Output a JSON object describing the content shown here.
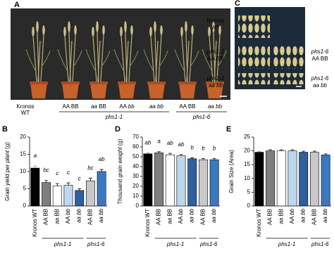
{
  "panel_a": {
    "letter": "A",
    "labels": [
      [
        "Kronos",
        "WT"
      ],
      [
        "AA BB"
      ],
      [
        "aa BB"
      ],
      [
        "AA bb"
      ],
      [
        "aa bb"
      ],
      [
        "AA BB"
      ],
      [
        "aa bb"
      ]
    ],
    "groups": [
      "phs1-1",
      "phs1-6"
    ]
  },
  "panel_c": {
    "letter": "C",
    "left_labels": [
      [
        "Kronos",
        "WT"
      ],
      [
        "phs1-1",
        "AA BB"
      ],
      [
        "phs1-1",
        "aa bb"
      ]
    ],
    "right_labels": [
      [
        "phs1-6",
        "AA BB"
      ],
      [
        "phs1-6",
        "aa bb"
      ]
    ]
  },
  "chart_data": [
    {
      "type": "bar",
      "letter": "B",
      "y_label": "Grain yield per plant (g)",
      "categories": [
        "Kronos WT",
        "AA BB",
        "aa BB",
        "AA bb",
        "aa bb",
        "AA BB",
        "aa bb"
      ],
      "groups": [
        "phs1-1",
        "phs1-6"
      ],
      "values": [
        11,
        6.8,
        5.8,
        6,
        4.5,
        7.3,
        10
      ],
      "errors": [
        0.6,
        0.6,
        0.7,
        0.7,
        0.5,
        0.8,
        0.6
      ],
      "annotations": [
        "a",
        "bc",
        "c",
        "c",
        "c",
        "bc",
        "ab"
      ],
      "colors": [
        "#000000",
        "#7f7f7f",
        "#ffffff",
        "#bdd7ee",
        "#2e5f9e",
        "#c8c8c8",
        "#3a78c0"
      ],
      "ylim": [
        0,
        20
      ],
      "yticks": [
        0,
        5,
        10,
        15,
        20
      ]
    },
    {
      "type": "bar",
      "letter": "D",
      "y_label": "Thousand grain weight (g)",
      "categories": [
        "Kronos WT",
        "AA BB",
        "aa BB",
        "AA bb",
        "aa bb",
        "AA BB",
        "aa bb"
      ],
      "groups": [
        "phs1-1",
        "phs1-6"
      ],
      "values": [
        53,
        54,
        52,
        51,
        48,
        47,
        47
      ],
      "errors": [
        1,
        1.2,
        1.5,
        1.3,
        1,
        1.2,
        1.1
      ],
      "annotations": [
        "ab",
        "a",
        "ab",
        "ab",
        "b",
        "b",
        "b"
      ],
      "colors": [
        "#000000",
        "#7f7f7f",
        "#ffffff",
        "#bdd7ee",
        "#2e5f9e",
        "#c8c8c8",
        "#3a78c0"
      ],
      "ylim": [
        0,
        70
      ],
      "yticks": [
        0,
        10,
        20,
        30,
        40,
        50,
        60,
        70
      ]
    },
    {
      "type": "bar",
      "letter": "E",
      "y_label": "Grain Size (Area)",
      "categories": [
        "Kronos WT",
        "AA BB",
        "aa BB",
        "AA bb",
        "aa bb",
        "AA BB",
        "aa bb"
      ],
      "groups": [
        "phs1-1",
        "phs1-6"
      ],
      "values": [
        19.5,
        20,
        20,
        20,
        19.5,
        19.5,
        18.5
      ],
      "errors": [
        0.3,
        0.4,
        0.4,
        0.4,
        0.4,
        0.4,
        0.4
      ],
      "colors": [
        "#000000",
        "#7f7f7f",
        "#ffffff",
        "#bdd7ee",
        "#2e5f9e",
        "#c8c8c8",
        "#3a78c0"
      ],
      "ylim": [
        0,
        25
      ],
      "yticks": [
        0,
        5,
        10,
        15,
        20,
        25
      ]
    }
  ]
}
